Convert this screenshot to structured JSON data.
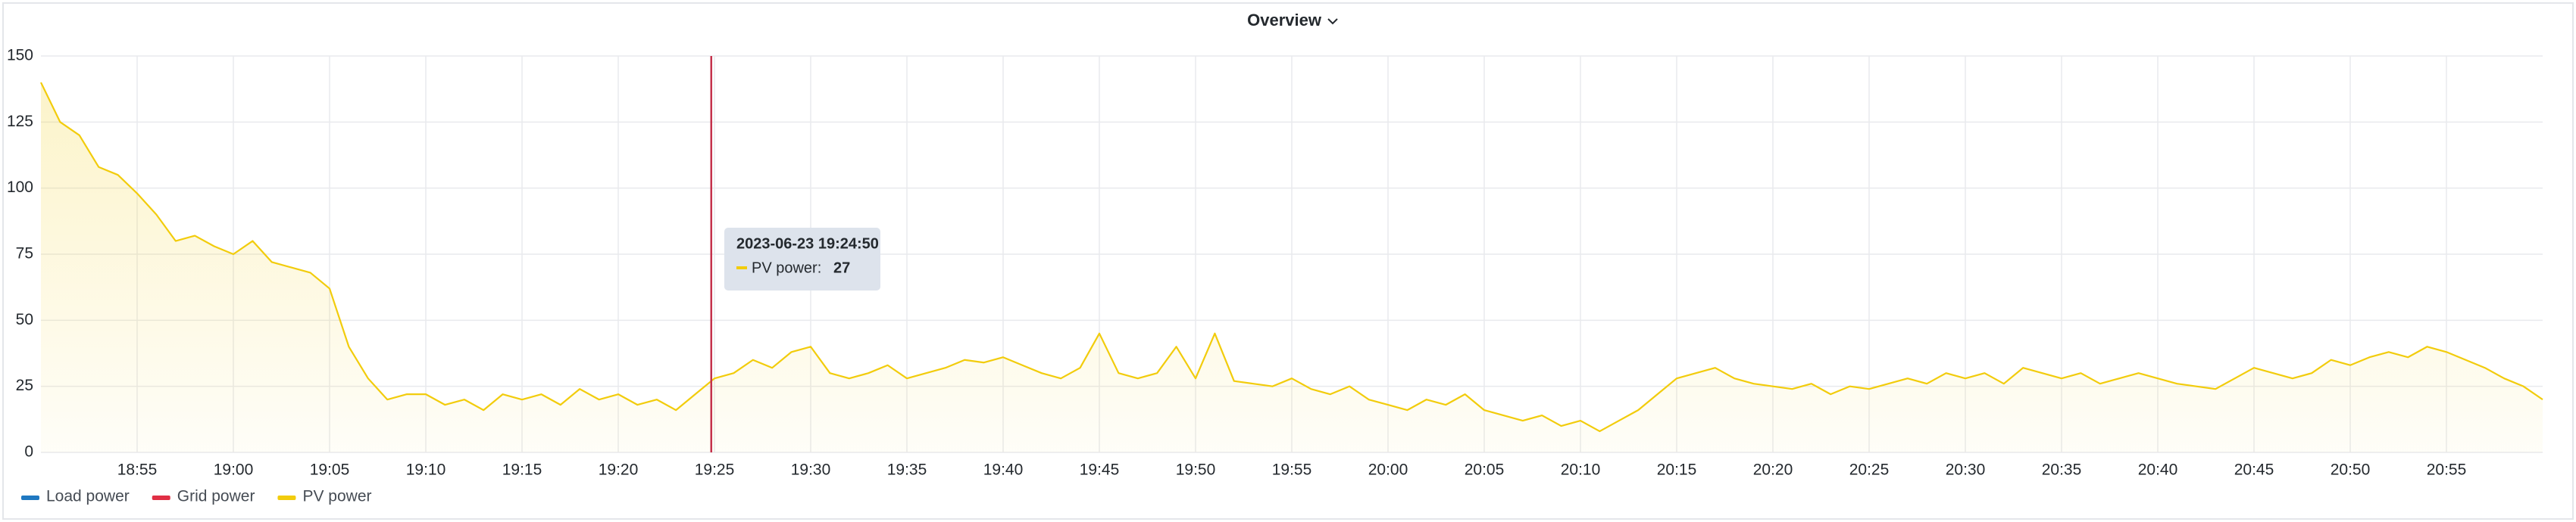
{
  "chart_data": {
    "type": "line",
    "title": "Overview",
    "x": [
      "18:50",
      "18:51",
      "18:52",
      "18:53",
      "18:54",
      "18:55",
      "18:56",
      "18:57",
      "18:58",
      "18:59",
      "19:00",
      "19:01",
      "19:02",
      "19:03",
      "19:04",
      "19:05",
      "19:06",
      "19:07",
      "19:08",
      "19:09",
      "19:10",
      "19:11",
      "19:12",
      "19:13",
      "19:14",
      "19:15",
      "19:16",
      "19:17",
      "19:18",
      "19:19",
      "19:20",
      "19:21",
      "19:22",
      "19:23",
      "19:24",
      "19:25",
      "19:26",
      "19:27",
      "19:28",
      "19:29",
      "19:30",
      "19:31",
      "19:32",
      "19:33",
      "19:34",
      "19:35",
      "19:36",
      "19:37",
      "19:38",
      "19:39",
      "19:40",
      "19:41",
      "19:42",
      "19:43",
      "19:44",
      "19:45",
      "19:46",
      "19:47",
      "19:48",
      "19:49",
      "19:50",
      "19:51",
      "19:52",
      "19:53",
      "19:54",
      "19:55",
      "19:56",
      "19:57",
      "19:58",
      "19:59",
      "20:00",
      "20:01",
      "20:02",
      "20:03",
      "20:04",
      "20:05",
      "20:06",
      "20:07",
      "20:08",
      "20:09",
      "20:10",
      "20:11",
      "20:12",
      "20:13",
      "20:14",
      "20:15",
      "20:16",
      "20:17",
      "20:18",
      "20:19",
      "20:20",
      "20:21",
      "20:22",
      "20:23",
      "20:24",
      "20:25",
      "20:26",
      "20:27",
      "20:28",
      "20:29",
      "20:30",
      "20:31",
      "20:32",
      "20:33",
      "20:34",
      "20:35",
      "20:36",
      "20:37",
      "20:38",
      "20:39",
      "20:40",
      "20:41",
      "20:42",
      "20:43",
      "20:44",
      "20:45",
      "20:46",
      "20:47",
      "20:48",
      "20:49",
      "20:50",
      "20:51",
      "20:52",
      "20:53",
      "20:54",
      "20:55",
      "20:56",
      "20:57",
      "20:58",
      "20:59",
      "21:00"
    ],
    "series": [
      {
        "name": "Load power",
        "color": "#1f78c1"
      },
      {
        "name": "Grid power",
        "color": "#e02f44"
      },
      {
        "name": "PV power",
        "color": "#f2cc0c",
        "values": [
          140,
          125,
          120,
          108,
          105,
          98,
          90,
          80,
          82,
          78,
          75,
          80,
          72,
          70,
          68,
          62,
          40,
          28,
          20,
          22,
          22,
          18,
          20,
          16,
          22,
          20,
          22,
          18,
          24,
          20,
          22,
          18,
          20,
          16,
          22,
          28,
          30,
          35,
          32,
          38,
          40,
          30,
          28,
          30,
          33,
          28,
          30,
          32,
          35,
          34,
          36,
          33,
          30,
          28,
          32,
          45,
          30,
          28,
          30,
          40,
          28,
          45,
          27,
          26,
          25,
          28,
          24,
          22,
          25,
          20,
          18,
          16,
          20,
          18,
          22,
          16,
          14,
          12,
          14,
          10,
          12,
          8,
          12,
          16,
          22,
          28,
          30,
          32,
          28,
          26,
          25,
          24,
          26,
          22,
          25,
          24,
          26,
          28,
          26,
          30,
          28,
          30,
          26,
          32,
          30,
          28,
          30,
          26,
          28,
          30,
          28,
          26,
          25,
          24,
          28,
          32,
          30,
          28,
          30,
          35,
          33,
          36,
          38,
          36,
          40,
          38,
          35,
          32,
          28,
          25,
          20
        ]
      }
    ],
    "xlim": [
      "18:50",
      "21:00"
    ],
    "xticks": [
      "18:55",
      "19:00",
      "19:05",
      "19:10",
      "19:15",
      "19:20",
      "19:25",
      "19:30",
      "19:35",
      "19:40",
      "19:45",
      "19:50",
      "19:55",
      "20:00",
      "20:05",
      "20:10",
      "20:15",
      "20:20",
      "20:25",
      "20:30",
      "20:35",
      "20:40",
      "20:45",
      "20:50",
      "20:55"
    ],
    "ylim": [
      0,
      150
    ],
    "yticks": [
      0,
      25,
      50,
      75,
      100,
      125,
      150
    ],
    "grid": true,
    "legend": "bottom-left",
    "tooltip": {
      "time": "2023-06-23 19:24:50",
      "label": "PV power:",
      "value": 27
    }
  }
}
